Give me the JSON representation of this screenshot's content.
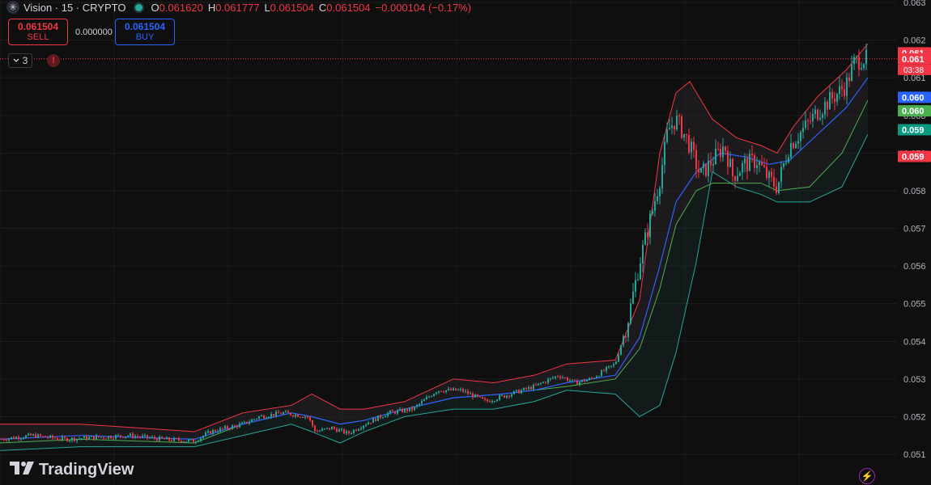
{
  "header": {
    "symbol_icon": "✳",
    "title": "Vision · 15 · CRYPTO",
    "ohlc": {
      "o_label": "O",
      "o": "0.061620",
      "h_label": "H",
      "h": "0.061777",
      "l_label": "L",
      "l": "0.061504",
      "c_label": "C",
      "c": "0.061504",
      "change": "−0.000104 (−0.17%)"
    }
  },
  "trade": {
    "sell_price": "0.061504",
    "sell_label": "SELL",
    "spread": "0.000000",
    "buy_price": "0.061504",
    "buy_label": "BUY"
  },
  "indicators_toggle": {
    "count": "3"
  },
  "alert_icon": "!",
  "brand": {
    "name": "TradingView"
  },
  "colors": {
    "up": "#26a69a",
    "down": "#f23645",
    "ma": "#2962ff",
    "upper_band": "#f23645",
    "lower_band": "#26a69a",
    "mid_band": "#4caf50",
    "purple": "#9c27b0"
  },
  "chart_data": {
    "type": "candlestick",
    "symbol": "Vision",
    "interval": "15",
    "ylim": [
      0.0507,
      0.0633
    ],
    "y_ticks": [
      "0.063",
      "0.062",
      "0.061",
      "0.060",
      "0.059",
      "0.058",
      "0.057",
      "0.056",
      "0.055",
      "0.054",
      "0.053",
      "0.052",
      "0.051"
    ],
    "last_price": 0.061504,
    "countdown": "03:38",
    "price_labels": [
      {
        "value": 0.06166,
        "text": "0.061",
        "color": "#f23645"
      },
      {
        "value": 0.0615,
        "text": "0.061",
        "color": "#f23645"
      },
      {
        "value": 0.06048,
        "text": "0.060",
        "color": "#2962ff"
      },
      {
        "value": 0.06012,
        "text": "0.060",
        "color": "#4caf50"
      },
      {
        "value": 0.05962,
        "text": "0.059",
        "color": "#089981"
      },
      {
        "value": 0.05891,
        "text": "0.059",
        "color": "#f23645"
      }
    ],
    "series": [
      {
        "name": "",
        "kind": "close",
        "values": [
          [
            0,
            0.0514
          ],
          [
            40,
            0.0515
          ],
          [
            80,
            0.0514
          ],
          [
            120,
            0.05145
          ],
          [
            160,
            0.0515
          ],
          [
            200,
            0.0514
          ],
          [
            240,
            0.05135
          ],
          [
            260,
            0.0516
          ],
          [
            300,
            0.0518
          ],
          [
            320,
            0.052
          ],
          [
            350,
            0.0521
          ],
          [
            380,
            0.052
          ],
          [
            390,
            0.0516
          ],
          [
            410,
            0.0517
          ],
          [
            430,
            0.05155
          ],
          [
            450,
            0.0518
          ],
          [
            480,
            0.0521
          ],
          [
            510,
            0.0522
          ],
          [
            540,
            0.0527
          ],
          [
            570,
            0.0527
          ],
          [
            600,
            0.0524
          ],
          [
            630,
            0.0526
          ],
          [
            660,
            0.0528
          ],
          [
            690,
            0.0531
          ],
          [
            710,
            0.0529
          ],
          [
            730,
            0.053
          ],
          [
            760,
            0.0534
          ],
          [
            775,
            0.0545
          ],
          [
            790,
            0.0561
          ],
          [
            805,
            0.0574
          ],
          [
            815,
            0.0583
          ],
          [
            825,
            0.0596
          ],
          [
            835,
            0.0599
          ],
          [
            850,
            0.0593
          ],
          [
            865,
            0.0584
          ],
          [
            880,
            0.0588
          ],
          [
            895,
            0.0592
          ],
          [
            905,
            0.0584
          ],
          [
            920,
            0.0587
          ],
          [
            935,
            0.0588
          ],
          [
            950,
            0.0583
          ],
          [
            960,
            0.0581
          ],
          [
            975,
            0.0592
          ],
          [
            995,
            0.0597
          ],
          [
            1010,
            0.0601
          ],
          [
            1030,
            0.0605
          ],
          [
            1045,
            0.0608
          ],
          [
            1055,
            0.0614
          ],
          [
            1065,
            0.0615
          ],
          [
            1072,
            0.0615
          ]
        ]
      }
    ],
    "upper_band": [
      [
        0,
        0.0518
      ],
      [
        100,
        0.0518
      ],
      [
        240,
        0.0516
      ],
      [
        300,
        0.0521
      ],
      [
        360,
        0.0523
      ],
      [
        385,
        0.0526
      ],
      [
        420,
        0.0522
      ],
      [
        450,
        0.0522
      ],
      [
        500,
        0.0524
      ],
      [
        560,
        0.053
      ],
      [
        610,
        0.0529
      ],
      [
        660,
        0.0531
      ],
      [
        700,
        0.0534
      ],
      [
        760,
        0.0535
      ],
      [
        790,
        0.0551
      ],
      [
        815,
        0.059
      ],
      [
        835,
        0.0606
      ],
      [
        852,
        0.0609
      ],
      [
        880,
        0.0599
      ],
      [
        910,
        0.0594
      ],
      [
        940,
        0.0592
      ],
      [
        960,
        0.059
      ],
      [
        980,
        0.0597
      ],
      [
        1010,
        0.0605
      ],
      [
        1045,
        0.0612
      ],
      [
        1072,
        0.0619
      ]
    ],
    "lower_band": [
      [
        0,
        0.0511
      ],
      [
        100,
        0.0512
      ],
      [
        240,
        0.0512
      ],
      [
        300,
        0.0515
      ],
      [
        360,
        0.0518
      ],
      [
        385,
        0.0516
      ],
      [
        420,
        0.0513
      ],
      [
        450,
        0.0516
      ],
      [
        500,
        0.052
      ],
      [
        560,
        0.0522
      ],
      [
        610,
        0.0522
      ],
      [
        660,
        0.0524
      ],
      [
        700,
        0.0527
      ],
      [
        760,
        0.0526
      ],
      [
        790,
        0.052
      ],
      [
        815,
        0.0523
      ],
      [
        835,
        0.0537
      ],
      [
        860,
        0.0561
      ],
      [
        880,
        0.0585
      ],
      [
        910,
        0.0581
      ],
      [
        940,
        0.0579
      ],
      [
        960,
        0.0577
      ],
      [
        1000,
        0.0577
      ],
      [
        1040,
        0.0581
      ],
      [
        1072,
        0.0595
      ]
    ],
    "mid_band": [
      [
        0,
        0.0513
      ],
      [
        100,
        0.0514
      ],
      [
        240,
        0.0513
      ],
      [
        300,
        0.0518
      ],
      [
        360,
        0.0521
      ],
      [
        385,
        0.052
      ],
      [
        420,
        0.0518
      ],
      [
        450,
        0.0519
      ],
      [
        500,
        0.0522
      ],
      [
        560,
        0.0525
      ],
      [
        620,
        0.0526
      ],
      [
        660,
        0.0527
      ],
      [
        700,
        0.0528
      ],
      [
        760,
        0.053
      ],
      [
        790,
        0.0538
      ],
      [
        815,
        0.0554
      ],
      [
        835,
        0.0571
      ],
      [
        860,
        0.058
      ],
      [
        880,
        0.0582
      ],
      [
        910,
        0.0582
      ],
      [
        940,
        0.0582
      ],
      [
        960,
        0.058
      ],
      [
        1000,
        0.0581
      ],
      [
        1040,
        0.059
      ],
      [
        1072,
        0.0604
      ]
    ],
    "ma_line": [
      [
        0,
        0.0514
      ],
      [
        100,
        0.0515
      ],
      [
        240,
        0.0514
      ],
      [
        300,
        0.0518
      ],
      [
        360,
        0.0521
      ],
      [
        385,
        0.052
      ],
      [
        420,
        0.0518
      ],
      [
        450,
        0.0519
      ],
      [
        500,
        0.0522
      ],
      [
        560,
        0.0525
      ],
      [
        620,
        0.0526
      ],
      [
        660,
        0.0527
      ],
      [
        700,
        0.0529
      ],
      [
        760,
        0.0531
      ],
      [
        790,
        0.0541
      ],
      [
        815,
        0.056
      ],
      [
        835,
        0.0577
      ],
      [
        860,
        0.0585
      ],
      [
        890,
        0.059
      ],
      [
        920,
        0.0589
      ],
      [
        950,
        0.0587
      ],
      [
        975,
        0.0588
      ],
      [
        1010,
        0.0595
      ],
      [
        1045,
        0.0602
      ],
      [
        1072,
        0.061
      ]
    ],
    "grid": true,
    "legend": "none"
  }
}
